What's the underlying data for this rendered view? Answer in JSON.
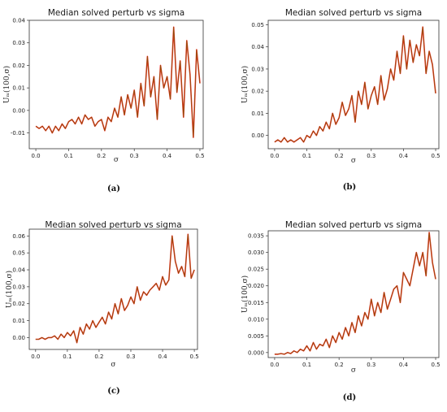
{
  "chart_data": [
    {
      "type": "line",
      "panel": "(a)",
      "title": "Median solved perturb vs sigma",
      "xlabel": "σ",
      "ylabel": "Uₘ(100,σ)",
      "xlim": [
        -0.02,
        0.51
      ],
      "ylim": [
        -0.017,
        0.04
      ],
      "xticks": [
        0.0,
        0.1,
        0.2,
        0.3,
        0.4,
        0.5
      ],
      "xtick_labels": [
        "0.0",
        "0.1",
        "0.2",
        "0.3",
        "0.4",
        "0.5"
      ],
      "yticks": [
        -0.01,
        0.0,
        0.01,
        0.02,
        0.03,
        0.04
      ],
      "ytick_labels": [
        "-0.01",
        "0.00",
        "0.01",
        "0.02",
        "0.03",
        "0.04"
      ],
      "series": [
        {
          "colors": [
            "#ff2a2a",
            "#6b5a00"
          ],
          "x": [
            0.0,
            0.01,
            0.02,
            0.03,
            0.04,
            0.05,
            0.06,
            0.07,
            0.08,
            0.09,
            0.1,
            0.11,
            0.12,
            0.13,
            0.14,
            0.15,
            0.16,
            0.17,
            0.18,
            0.19,
            0.2,
            0.21,
            0.22,
            0.23,
            0.24,
            0.25,
            0.26,
            0.27,
            0.28,
            0.29,
            0.3,
            0.31,
            0.32,
            0.33,
            0.34,
            0.35,
            0.36,
            0.37,
            0.38,
            0.39,
            0.4,
            0.41,
            0.42,
            0.43,
            0.44,
            0.45,
            0.46,
            0.47,
            0.48,
            0.49,
            0.5
          ],
          "y": [
            -0.007,
            -0.008,
            -0.007,
            -0.009,
            -0.007,
            -0.01,
            -0.007,
            -0.009,
            -0.006,
            -0.008,
            -0.005,
            -0.004,
            -0.006,
            -0.003,
            -0.006,
            -0.002,
            -0.004,
            -0.003,
            -0.007,
            -0.005,
            -0.004,
            -0.009,
            -0.003,
            -0.005,
            0.001,
            -0.003,
            0.006,
            -0.002,
            0.007,
            0.001,
            0.009,
            -0.003,
            0.012,
            0.002,
            0.024,
            0.006,
            0.015,
            -0.004,
            0.02,
            0.01,
            0.015,
            0.005,
            0.037,
            0.008,
            0.022,
            -0.003,
            0.031,
            0.016,
            -0.012,
            0.027,
            0.012
          ]
        }
      ]
    },
    {
      "type": "line",
      "panel": "(b)",
      "title": "Median solved perturb vs sigma",
      "xlabel": "σ",
      "ylabel": "Uₘ(100,σ)",
      "xlim": [
        -0.02,
        0.51
      ],
      "ylim": [
        -0.006,
        0.052
      ],
      "xticks": [
        0.0,
        0.1,
        0.2,
        0.3,
        0.4,
        0.5
      ],
      "xtick_labels": [
        "0.0",
        "0.1",
        "0.2",
        "0.3",
        "0.4",
        "0.5"
      ],
      "yticks": [
        0.0,
        0.01,
        0.02,
        0.03,
        0.04,
        0.05
      ],
      "ytick_labels": [
        "0.00",
        "0.01",
        "0.02",
        "0.03",
        "0.04",
        "0.05"
      ],
      "series": [
        {
          "colors": [
            "#ff2a2a",
            "#6b5a00"
          ],
          "x": [
            0.0,
            0.01,
            0.02,
            0.03,
            0.04,
            0.05,
            0.06,
            0.07,
            0.08,
            0.09,
            0.1,
            0.11,
            0.12,
            0.13,
            0.14,
            0.15,
            0.16,
            0.17,
            0.18,
            0.19,
            0.2,
            0.21,
            0.22,
            0.23,
            0.24,
            0.25,
            0.26,
            0.27,
            0.28,
            0.29,
            0.3,
            0.31,
            0.32,
            0.33,
            0.34,
            0.35,
            0.36,
            0.37,
            0.38,
            0.39,
            0.4,
            0.41,
            0.42,
            0.43,
            0.44,
            0.45,
            0.46,
            0.47,
            0.48,
            0.49,
            0.5
          ],
          "y": [
            -0.003,
            -0.002,
            -0.003,
            -0.001,
            -0.003,
            -0.002,
            -0.003,
            -0.002,
            -0.001,
            -0.003,
            0.0,
            -0.001,
            0.002,
            0.0,
            0.004,
            0.002,
            0.006,
            0.003,
            0.01,
            0.005,
            0.008,
            0.015,
            0.009,
            0.012,
            0.018,
            0.006,
            0.02,
            0.014,
            0.024,
            0.012,
            0.018,
            0.022,
            0.014,
            0.027,
            0.016,
            0.021,
            0.03,
            0.025,
            0.038,
            0.028,
            0.045,
            0.03,
            0.043,
            0.033,
            0.041,
            0.036,
            0.049,
            0.028,
            0.038,
            0.032,
            0.019
          ]
        }
      ]
    },
    {
      "type": "line",
      "panel": "(c)",
      "title": "Median solved perturb vs sigma",
      "xlabel": "σ",
      "ylabel": "Uₘ(100,σ)",
      "xlim": [
        -0.02,
        0.51
      ],
      "ylim": [
        -0.007,
        0.064
      ],
      "xticks": [
        0.0,
        0.1,
        0.2,
        0.3,
        0.4,
        0.5
      ],
      "xtick_labels": [
        "0.0",
        "0.1",
        "0.2",
        "0.3",
        "0.4",
        "0.5"
      ],
      "yticks": [
        0.0,
        0.01,
        0.02,
        0.03,
        0.04,
        0.05,
        0.06
      ],
      "ytick_labels": [
        "0.00",
        "0.01",
        "0.02",
        "0.03",
        "0.04",
        "0.05",
        "0.06"
      ],
      "series": [
        {
          "colors": [
            "#ff2a2a",
            "#6b5a00"
          ],
          "x": [
            0.0,
            0.01,
            0.02,
            0.03,
            0.04,
            0.05,
            0.06,
            0.07,
            0.08,
            0.09,
            0.1,
            0.11,
            0.12,
            0.13,
            0.14,
            0.15,
            0.16,
            0.17,
            0.18,
            0.19,
            0.2,
            0.21,
            0.22,
            0.23,
            0.24,
            0.25,
            0.26,
            0.27,
            0.28,
            0.29,
            0.3,
            0.31,
            0.32,
            0.33,
            0.34,
            0.35,
            0.36,
            0.37,
            0.38,
            0.39,
            0.4,
            0.41,
            0.42,
            0.43,
            0.44,
            0.45,
            0.46,
            0.47,
            0.48,
            0.49,
            0.5
          ],
          "y": [
            -0.001,
            -0.001,
            0.0,
            -0.001,
            0.0,
            0.0,
            0.001,
            -0.001,
            0.002,
            0.0,
            0.003,
            0.001,
            0.004,
            -0.003,
            0.006,
            0.002,
            0.008,
            0.005,
            0.01,
            0.006,
            0.009,
            0.012,
            0.008,
            0.015,
            0.011,
            0.02,
            0.014,
            0.023,
            0.016,
            0.019,
            0.024,
            0.02,
            0.03,
            0.022,
            0.027,
            0.025,
            0.028,
            0.03,
            0.032,
            0.028,
            0.036,
            0.031,
            0.034,
            0.06,
            0.045,
            0.038,
            0.042,
            0.036,
            0.061,
            0.035,
            0.04
          ]
        }
      ]
    },
    {
      "type": "line",
      "panel": "(d)",
      "title": "Median solved perturb vs sigma",
      "xlabel": "σ",
      "ylabel": "Uₘ(100,σ)",
      "xlim": [
        -0.02,
        0.51
      ],
      "ylim": [
        -0.0015,
        0.0365
      ],
      "xticks": [
        0.0,
        0.1,
        0.2,
        0.3,
        0.4,
        0.5
      ],
      "xtick_labels": [
        "0.0",
        "0.1",
        "0.2",
        "0.3",
        "0.4",
        "0.5"
      ],
      "yticks": [
        0.0,
        0.005,
        0.01,
        0.015,
        0.02,
        0.025,
        0.03,
        0.035
      ],
      "ytick_labels": [
        "0.000",
        "0.005",
        "0.010",
        "0.015",
        "0.020",
        "0.025",
        "0.030",
        "0.035"
      ],
      "series": [
        {
          "colors": [
            "#ff2a2a",
            "#6b5a00"
          ],
          "x": [
            0.0,
            0.01,
            0.02,
            0.03,
            0.04,
            0.05,
            0.06,
            0.07,
            0.08,
            0.09,
            0.1,
            0.11,
            0.12,
            0.13,
            0.14,
            0.15,
            0.16,
            0.17,
            0.18,
            0.19,
            0.2,
            0.21,
            0.22,
            0.23,
            0.24,
            0.25,
            0.26,
            0.27,
            0.28,
            0.29,
            0.3,
            0.31,
            0.32,
            0.33,
            0.34,
            0.35,
            0.36,
            0.37,
            0.38,
            0.39,
            0.4,
            0.41,
            0.42,
            0.43,
            0.44,
            0.45,
            0.46,
            0.47,
            0.48,
            0.49,
            0.5
          ],
          "y": [
            -0.0005,
            -0.0005,
            -0.0003,
            -0.0005,
            0.0,
            -0.0003,
            0.0005,
            0.0,
            0.001,
            0.0005,
            0.002,
            0.0005,
            0.003,
            0.001,
            0.0025,
            0.002,
            0.004,
            0.0015,
            0.005,
            0.003,
            0.006,
            0.004,
            0.0075,
            0.005,
            0.009,
            0.006,
            0.011,
            0.008,
            0.012,
            0.01,
            0.016,
            0.011,
            0.015,
            0.012,
            0.018,
            0.013,
            0.016,
            0.019,
            0.02,
            0.015,
            0.024,
            0.022,
            0.02,
            0.025,
            0.03,
            0.026,
            0.03,
            0.023,
            0.036,
            0.027,
            0.022
          ]
        }
      ]
    }
  ]
}
